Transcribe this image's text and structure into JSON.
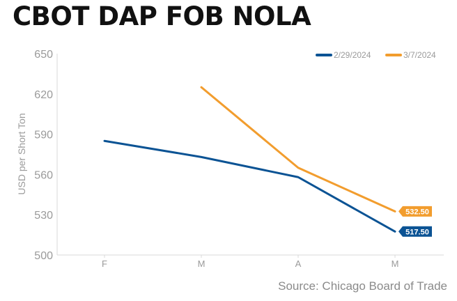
{
  "title": "CBOT DAP FOB NOLA",
  "source": "Source: Chicago Board of Trade",
  "chart_data": {
    "type": "line",
    "title": "CBOT DAP FOB NOLA",
    "xlabel": "",
    "ylabel": "USD per Short Ton",
    "categories": [
      "F",
      "M",
      "A",
      "M"
    ],
    "ylim": [
      500,
      650
    ],
    "yticks": [
      500,
      530,
      560,
      590,
      620,
      650
    ],
    "grid": false,
    "legend_position": "top-right",
    "series": [
      {
        "name": "2/29/2024",
        "color": "#0b5394",
        "values": [
          585,
          573,
          558,
          517.5
        ],
        "end_label": "517.50"
      },
      {
        "name": "3/7/2024",
        "color": "#f29d2e",
        "values": [
          null,
          625,
          565,
          532.5
        ],
        "end_label": "532.50"
      }
    ]
  }
}
